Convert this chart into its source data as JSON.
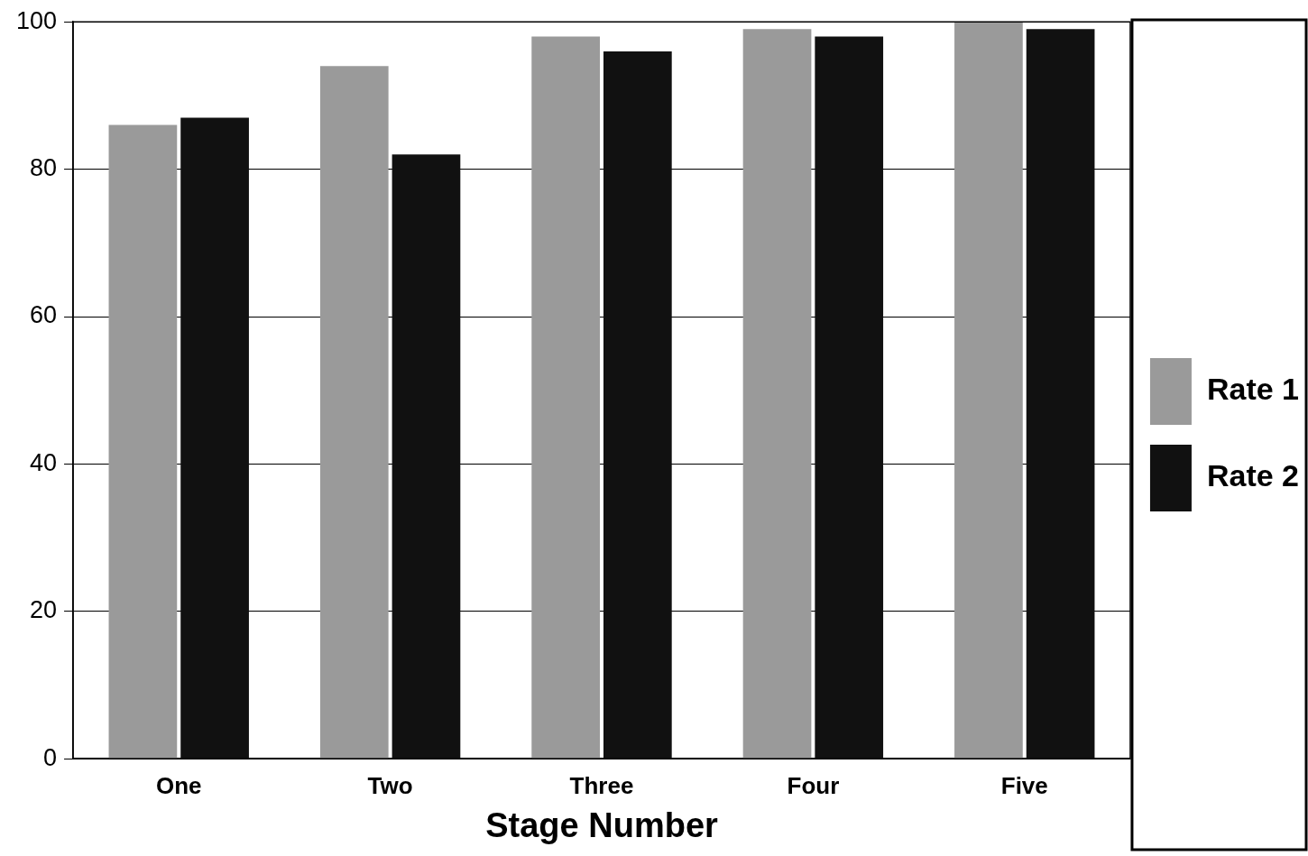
{
  "chart_data": {
    "type": "bar",
    "xlabel": "Stage Number",
    "categories": [
      "One",
      "Two",
      "Three",
      "Four",
      "Five"
    ],
    "series": [
      {
        "name": "Rate 1",
        "color": "#9a9a9a",
        "values": [
          86,
          94,
          98,
          99,
          100
        ]
      },
      {
        "name": "Rate 2",
        "color": "#111111",
        "values": [
          87,
          82,
          96,
          98,
          99
        ]
      }
    ],
    "ylim": [
      0,
      100
    ],
    "yticks": [
      0,
      20,
      40,
      60,
      80,
      100
    ],
    "grid": "y",
    "legend": "right"
  }
}
